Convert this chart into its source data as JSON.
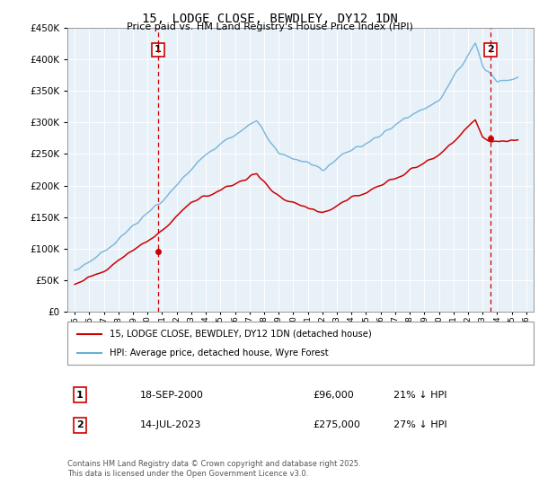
{
  "title": "15, LODGE CLOSE, BEWDLEY, DY12 1DN",
  "subtitle": "Price paid vs. HM Land Registry's House Price Index (HPI)",
  "legend_line1": "15, LODGE CLOSE, BEWDLEY, DY12 1DN (detached house)",
  "legend_line2": "HPI: Average price, detached house, Wyre Forest",
  "sale1_label": "1",
  "sale1_date": "18-SEP-2000",
  "sale1_price": "£96,000",
  "sale1_hpi": "21% ↓ HPI",
  "sale1_year": 2000.72,
  "sale1_value": 96000,
  "sale2_label": "2",
  "sale2_date": "14-JUL-2023",
  "sale2_price": "£275,000",
  "sale2_hpi": "27% ↓ HPI",
  "sale2_year": 2023.54,
  "sale2_value": 275000,
  "footer": "Contains HM Land Registry data © Crown copyright and database right 2025.\nThis data is licensed under the Open Government Licence v3.0.",
  "hpi_color": "#6baed6",
  "price_color": "#cc0000",
  "marker_color": "#cc0000",
  "chart_bg": "#e8f0f8",
  "background_color": "#ffffff",
  "grid_color": "#ffffff",
  "ylim": [
    0,
    450000
  ],
  "xlim_start": 1994.5,
  "xlim_end": 2026.5
}
